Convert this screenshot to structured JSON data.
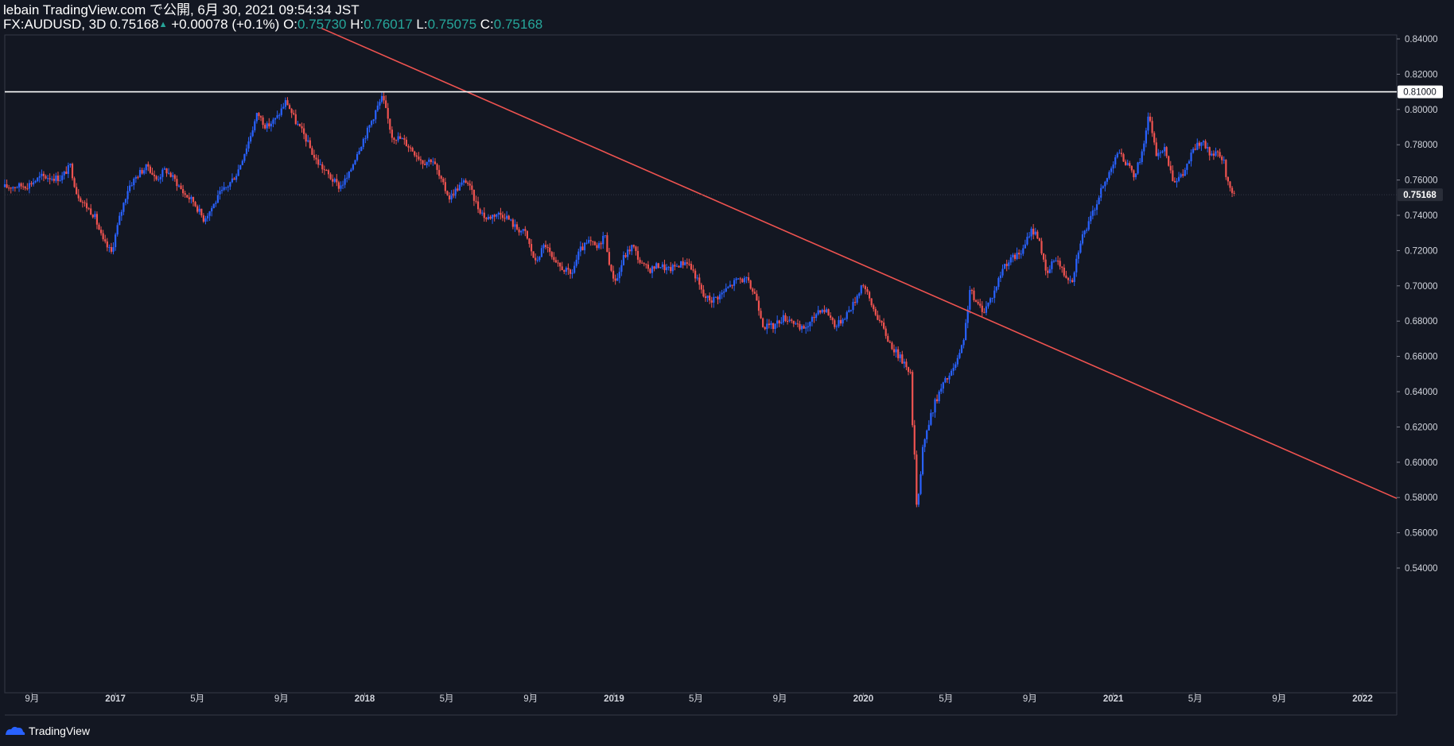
{
  "header": {
    "publisher": "lebain TradingView.com で公開, 6月 30, 2021 09:54:34 JST",
    "symbol": "FX:AUDUSD, 3D",
    "last": "0.75168",
    "arrow": "▲",
    "change": "+0.00078 (+0.1%)",
    "o_label": "O:",
    "o_value": "0.75730",
    "h_label": "H:",
    "h_value": "0.76017",
    "l_label": "L:",
    "l_value": "0.75075",
    "c_label": "C:",
    "c_value": "0.75168"
  },
  "footer": {
    "brand": "TradingView",
    "logo_icon": "tradingview-logo-icon"
  },
  "colors": {
    "background": "#131722",
    "up": "#2962ff",
    "down": "#ef5350",
    "trendline": "#ef5350",
    "hline": "#ffffff",
    "teal": "#26a69a"
  },
  "chart_data": {
    "type": "candlestick",
    "y_axis": {
      "range": [
        0.53,
        0.845
      ],
      "ticks": [
        "0.84000",
        "0.82000",
        "0.80000",
        "0.78000",
        "0.76000",
        "0.74000",
        "0.72000",
        "0.70000",
        "0.68000",
        "0.66000",
        "0.64000",
        "0.62000",
        "0.60000",
        "0.58000",
        "0.56000",
        "0.54000"
      ],
      "tick_values": [
        0.84,
        0.82,
        0.8,
        0.78,
        0.76,
        0.74,
        0.72,
        0.7,
        0.68,
        0.66,
        0.64,
        0.62,
        0.6,
        0.58,
        0.56,
        0.54
      ]
    },
    "x_axis": {
      "range": [
        "2016-07-23",
        "2022-02-20"
      ],
      "ticks": [
        {
          "label": "9月",
          "date": "2016-09-01",
          "bold": false
        },
        {
          "label": "2017",
          "date": "2017-01-01",
          "bold": true
        },
        {
          "label": "5月",
          "date": "2017-05-01",
          "bold": false
        },
        {
          "label": "9月",
          "date": "2017-09-01",
          "bold": false
        },
        {
          "label": "2018",
          "date": "2018-01-01",
          "bold": true
        },
        {
          "label": "5月",
          "date": "2018-05-01",
          "bold": false
        },
        {
          "label": "9月",
          "date": "2018-09-01",
          "bold": false
        },
        {
          "label": "2019",
          "date": "2019-01-01",
          "bold": true
        },
        {
          "label": "5月",
          "date": "2019-05-01",
          "bold": false
        },
        {
          "label": "9月",
          "date": "2019-09-01",
          "bold": false
        },
        {
          "label": "2020",
          "date": "2020-01-01",
          "bold": true
        },
        {
          "label": "5月",
          "date": "2020-05-01",
          "bold": false
        },
        {
          "label": "9月",
          "date": "2020-09-01",
          "bold": false
        },
        {
          "label": "2021",
          "date": "2021-01-01",
          "bold": true
        },
        {
          "label": "5月",
          "date": "2021-05-01",
          "bold": false
        },
        {
          "label": "9月",
          "date": "2021-09-01",
          "bold": false
        },
        {
          "label": "2022",
          "date": "2022-01-01",
          "bold": true
        }
      ]
    },
    "horizontal_line": {
      "price": 0.81,
      "label": "0.81000"
    },
    "last_price": {
      "price": 0.75168,
      "label": "0.75168"
    },
    "trendline": {
      "start": {
        "date": "2017-10-30",
        "price": 0.846
      },
      "end": {
        "date": "2022-02-20",
        "price": 0.5795
      }
    },
    "close_path": [
      [
        "2016-07-23",
        0.756
      ],
      [
        "2016-08-25",
        0.757
      ],
      [
        "2016-09-15",
        0.762
      ],
      [
        "2016-10-13",
        0.761
      ],
      [
        "2016-10-27",
        0.768
      ],
      [
        "2016-11-05",
        0.753
      ],
      [
        "2016-11-15",
        0.747
      ],
      [
        "2016-12-01",
        0.74
      ],
      [
        "2016-12-14",
        0.725
      ],
      [
        "2016-12-26",
        0.719
      ],
      [
        "2017-01-08",
        0.74
      ],
      [
        "2017-01-20",
        0.756
      ],
      [
        "2017-02-05",
        0.764
      ],
      [
        "2017-02-18",
        0.768
      ],
      [
        "2017-03-01",
        0.76
      ],
      [
        "2017-03-15",
        0.766
      ],
      [
        "2017-03-29",
        0.76
      ],
      [
        "2017-04-12",
        0.752
      ],
      [
        "2017-04-25",
        0.748
      ],
      [
        "2017-05-10",
        0.738
      ],
      [
        "2017-05-20",
        0.743
      ],
      [
        "2017-06-03",
        0.752
      ],
      [
        "2017-06-15",
        0.757
      ],
      [
        "2017-06-28",
        0.764
      ],
      [
        "2017-07-15",
        0.782
      ],
      [
        "2017-07-28",
        0.798
      ],
      [
        "2017-08-10",
        0.79
      ],
      [
        "2017-08-25",
        0.795
      ],
      [
        "2017-09-08",
        0.805
      ],
      [
        "2017-09-22",
        0.793
      ],
      [
        "2017-10-05",
        0.785
      ],
      [
        "2017-10-20",
        0.772
      ],
      [
        "2017-11-02",
        0.766
      ],
      [
        "2017-11-15",
        0.76
      ],
      [
        "2017-11-25",
        0.756
      ],
      [
        "2017-12-08",
        0.762
      ],
      [
        "2017-12-20",
        0.775
      ],
      [
        "2018-01-05",
        0.788
      ],
      [
        "2018-01-18",
        0.8
      ],
      [
        "2018-01-27",
        0.807
      ],
      [
        "2018-02-10",
        0.785
      ],
      [
        "2018-02-25",
        0.783
      ],
      [
        "2018-03-12",
        0.777
      ],
      [
        "2018-03-28",
        0.77
      ],
      [
        "2018-04-10",
        0.772
      ],
      [
        "2018-04-22",
        0.76
      ],
      [
        "2018-05-05",
        0.75
      ],
      [
        "2018-05-18",
        0.756
      ],
      [
        "2018-05-30",
        0.76
      ],
      [
        "2018-06-15",
        0.745
      ],
      [
        "2018-06-28",
        0.738
      ],
      [
        "2018-07-12",
        0.741
      ],
      [
        "2018-07-26",
        0.74
      ],
      [
        "2018-08-10",
        0.733
      ],
      [
        "2018-08-24",
        0.73
      ],
      [
        "2018-09-08",
        0.713
      ],
      [
        "2018-09-22",
        0.724
      ],
      [
        "2018-10-06",
        0.712
      ],
      [
        "2018-10-18",
        0.71
      ],
      [
        "2018-10-30",
        0.706
      ],
      [
        "2018-11-12",
        0.72
      ],
      [
        "2018-11-26",
        0.725
      ],
      [
        "2018-12-08",
        0.721
      ],
      [
        "2018-12-18",
        0.73
      ],
      [
        "2018-12-28",
        0.707
      ],
      [
        "2019-01-05",
        0.703
      ],
      [
        "2019-01-15",
        0.716
      ],
      [
        "2019-01-28",
        0.723
      ],
      [
        "2019-02-10",
        0.712
      ],
      [
        "2019-02-22",
        0.709
      ],
      [
        "2019-03-08",
        0.712
      ],
      [
        "2019-03-22",
        0.709
      ],
      [
        "2019-04-05",
        0.712
      ],
      [
        "2019-04-18",
        0.714
      ],
      [
        "2019-04-30",
        0.706
      ],
      [
        "2019-05-12",
        0.694
      ],
      [
        "2019-05-24",
        0.692
      ],
      [
        "2019-06-06",
        0.695
      ],
      [
        "2019-06-20",
        0.7
      ],
      [
        "2019-07-02",
        0.704
      ],
      [
        "2019-07-14",
        0.703
      ],
      [
        "2019-07-28",
        0.694
      ],
      [
        "2019-08-08",
        0.677
      ],
      [
        "2019-08-22",
        0.677
      ],
      [
        "2019-09-05",
        0.682
      ],
      [
        "2019-09-18",
        0.681
      ],
      [
        "2019-09-30",
        0.675
      ],
      [
        "2019-10-14",
        0.678
      ],
      [
        "2019-10-28",
        0.687
      ],
      [
        "2019-11-08",
        0.686
      ],
      [
        "2019-11-22",
        0.677
      ],
      [
        "2019-12-05",
        0.683
      ],
      [
        "2019-12-18",
        0.69
      ],
      [
        "2019-12-31",
        0.702
      ],
      [
        "2020-01-12",
        0.69
      ],
      [
        "2020-01-25",
        0.68
      ],
      [
        "2020-02-08",
        0.668
      ],
      [
        "2020-02-22",
        0.66
      ],
      [
        "2020-03-05",
        0.655
      ],
      [
        "2020-03-10",
        0.65
      ],
      [
        "2020-03-13",
        0.62
      ],
      [
        "2020-03-17",
        0.6
      ],
      [
        "2020-03-19",
        0.574
      ],
      [
        "2020-03-24",
        0.59
      ],
      [
        "2020-03-28",
        0.609
      ],
      [
        "2020-04-06",
        0.622
      ],
      [
        "2020-04-15",
        0.634
      ],
      [
        "2020-04-28",
        0.645
      ],
      [
        "2020-05-10",
        0.651
      ],
      [
        "2020-05-20",
        0.66
      ],
      [
        "2020-05-27",
        0.668
      ],
      [
        "2020-06-05",
        0.698
      ],
      [
        "2020-06-14",
        0.69
      ],
      [
        "2020-06-26",
        0.686
      ],
      [
        "2020-07-10",
        0.696
      ],
      [
        "2020-07-25",
        0.712
      ],
      [
        "2020-08-08",
        0.716
      ],
      [
        "2020-08-22",
        0.72
      ],
      [
        "2020-09-02",
        0.732
      ],
      [
        "2020-09-14",
        0.728
      ],
      [
        "2020-09-25",
        0.705
      ],
      [
        "2020-10-08",
        0.717
      ],
      [
        "2020-10-22",
        0.706
      ],
      [
        "2020-11-02",
        0.704
      ],
      [
        "2020-11-14",
        0.726
      ],
      [
        "2020-11-28",
        0.737
      ],
      [
        "2020-12-12",
        0.752
      ],
      [
        "2020-12-22",
        0.76
      ],
      [
        "2021-01-06",
        0.776
      ],
      [
        "2021-01-20",
        0.77
      ],
      [
        "2021-01-30",
        0.762
      ],
      [
        "2021-02-10",
        0.772
      ],
      [
        "2021-02-22",
        0.797
      ],
      [
        "2021-03-04",
        0.775
      ],
      [
        "2021-03-18",
        0.777
      ],
      [
        "2021-03-30",
        0.76
      ],
      [
        "2021-04-12",
        0.762
      ],
      [
        "2021-04-28",
        0.777
      ],
      [
        "2021-05-10",
        0.782
      ],
      [
        "2021-05-22",
        0.775
      ],
      [
        "2021-06-03",
        0.774
      ],
      [
        "2021-06-12",
        0.77
      ],
      [
        "2021-06-17",
        0.758
      ],
      [
        "2021-06-22",
        0.755
      ],
      [
        "2021-06-27",
        0.7517
      ]
    ]
  }
}
